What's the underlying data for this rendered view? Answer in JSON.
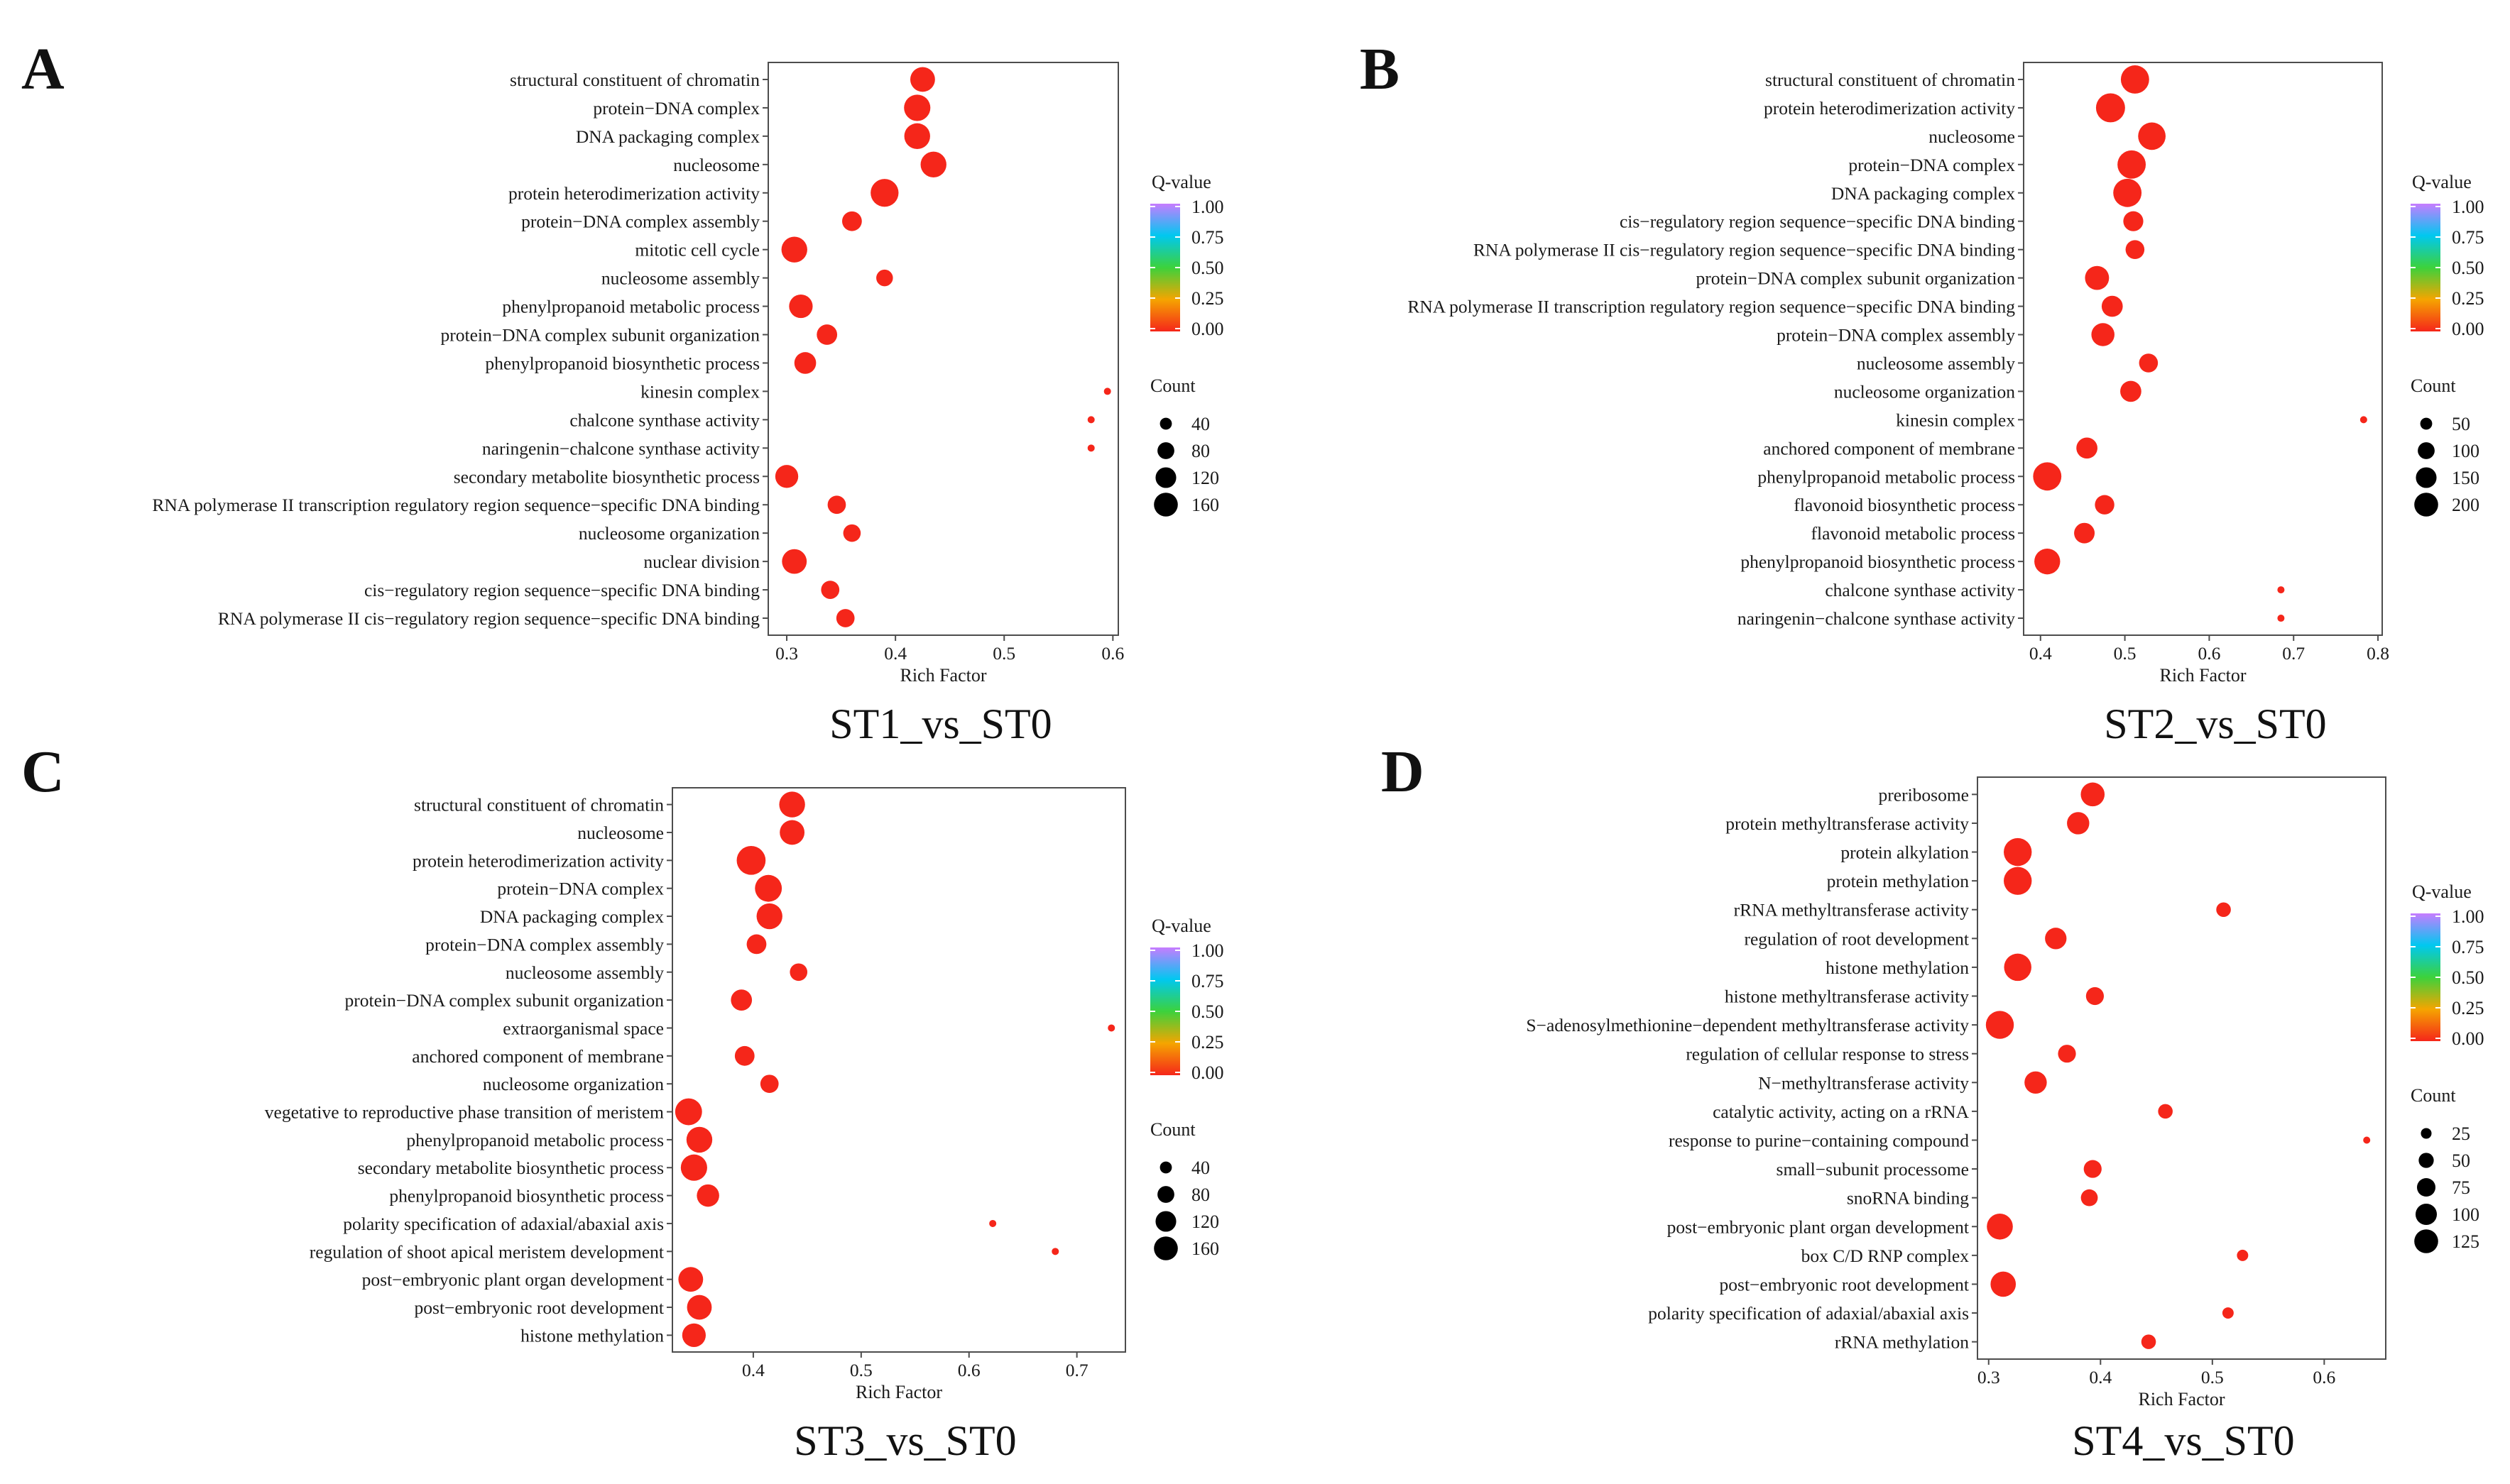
{
  "legend_labels": {
    "qvalue": "Q-value",
    "count": "Count"
  },
  "colors": {
    "dot": "#F5261A",
    "frame": "#4d4d4d"
  },
  "qvalue_ticks": [
    "1.00",
    "0.75",
    "0.50",
    "0.25",
    "0.00"
  ],
  "chart_data": [
    {
      "type": "scatter",
      "panel_letter": "A",
      "title": "ST1_vs_ST0",
      "xlabel": "Rich Factor",
      "xlim": [
        0.283,
        0.605
      ],
      "xticks": [
        0.3,
        0.4,
        0.5,
        0.6
      ],
      "xtick_labels": [
        "0.3",
        "0.4",
        "0.5",
        "0.6"
      ],
      "count_legend": {
        "values": [
          40,
          80,
          120,
          160
        ],
        "labels": [
          "40",
          "80",
          "120",
          "160"
        ]
      },
      "categories": [
        "structural constituent of chromatin",
        "protein−DNA complex",
        "DNA packaging complex",
        "nucleosome",
        "protein heterodimerization activity",
        "protein−DNA complex assembly",
        "mitotic cell cycle",
        "nucleosome assembly",
        "phenylpropanoid metabolic process",
        "protein−DNA complex subunit organization",
        "phenylpropanoid biosynthetic process",
        "kinesin complex",
        "chalcone synthase activity",
        "naringenin−chalcone synthase activity",
        "secondary metabolite biosynthetic process",
        "RNA polymerase II transcription regulatory region sequence−specific DNA binding",
        "nucleosome organization",
        "nuclear division",
        "cis−regulatory region sequence−specific DNA binding",
        "RNA polymerase II cis−regulatory region sequence−specific DNA binding"
      ],
      "rich_factor": [
        0.425,
        0.42,
        0.42,
        0.435,
        0.39,
        0.36,
        0.307,
        0.39,
        0.313,
        0.337,
        0.317,
        0.595,
        0.58,
        0.58,
        0.3,
        0.346,
        0.36,
        0.307,
        0.34,
        0.354
      ],
      "count": [
        110,
        125,
        120,
        120,
        140,
        70,
        120,
        50,
        100,
        75,
        85,
        8,
        8,
        8,
        95,
        60,
        55,
        110,
        60,
        60
      ],
      "qvalue": [
        0,
        0,
        0,
        0,
        0,
        0,
        0,
        0,
        0,
        0,
        0,
        0.02,
        0.02,
        0.02,
        0,
        0,
        0,
        0,
        0,
        0
      ]
    },
    {
      "type": "scatter",
      "panel_letter": "B",
      "title": "ST2_vs_ST0",
      "xlabel": "Rich Factor",
      "xlim": [
        0.38,
        0.805
      ],
      "xticks": [
        0.4,
        0.5,
        0.6,
        0.7,
        0.8
      ],
      "xtick_labels": [
        "0.4",
        "0.5",
        "0.6",
        "0.7",
        "0.8"
      ],
      "count_legend": {
        "values": [
          50,
          100,
          150,
          200
        ],
        "labels": [
          "50",
          "100",
          "150",
          "200"
        ]
      },
      "categories": [
        "structural constituent of chromatin",
        "protein heterodimerization activity",
        "nucleosome",
        "protein−DNA complex",
        "DNA packaging complex",
        "cis−regulatory region sequence−specific DNA binding",
        "RNA polymerase II cis−regulatory region sequence−specific DNA binding",
        "protein−DNA complex subunit organization",
        "RNA polymerase II transcription regulatory region sequence−specific DNA binding",
        "protein−DNA complex assembly",
        "nucleosome assembly",
        "nucleosome organization",
        "kinesin complex",
        "anchored component of membrane",
        "phenylpropanoid metabolic process",
        "flavonoid biosynthetic process",
        "flavonoid metabolic process",
        "phenylpropanoid biosynthetic process",
        "chalcone synthase activity",
        "naringenin−chalcone synthase activity"
      ],
      "rich_factor": [
        0.512,
        0.483,
        0.532,
        0.508,
        0.503,
        0.51,
        0.512,
        0.467,
        0.485,
        0.474,
        0.528,
        0.507,
        0.783,
        0.455,
        0.408,
        0.476,
        0.452,
        0.408,
        0.685,
        0.685
      ],
      "count": [
        180,
        190,
        170,
        180,
        180,
        90,
        80,
        130,
        100,
        120,
        80,
        100,
        8,
        100,
        180,
        85,
        95,
        150,
        8,
        8
      ],
      "qvalue": [
        0,
        0,
        0,
        0,
        0,
        0,
        0,
        0,
        0,
        0,
        0,
        0,
        0.02,
        0,
        0,
        0,
        0,
        0,
        0.02,
        0.02
      ]
    },
    {
      "type": "scatter",
      "panel_letter": "C",
      "title": "ST3_vs_ST0",
      "xlabel": "Rich Factor",
      "xlim": [
        0.325,
        0.745
      ],
      "xticks": [
        0.4,
        0.5,
        0.6,
        0.7
      ],
      "xtick_labels": [
        "0.4",
        "0.5",
        "0.6",
        "0.7"
      ],
      "count_legend": {
        "values": [
          40,
          80,
          120,
          160
        ],
        "labels": [
          "40",
          "80",
          "120",
          "160"
        ]
      },
      "categories": [
        "structural constituent of chromatin",
        "nucleosome",
        "protein heterodimerization activity",
        "protein−DNA complex",
        "DNA packaging complex",
        "protein−DNA complex assembly",
        "nucleosome assembly",
        "protein−DNA complex subunit organization",
        "extraorganismal space",
        "anchored component of membrane",
        "nucleosome organization",
        "vegetative to reproductive phase transition of meristem",
        "phenylpropanoid metabolic process",
        "secondary metabolite biosynthetic process",
        "phenylpropanoid biosynthetic process",
        "polarity specification of adaxial/abaxial axis",
        "regulation of shoot apical meristem development",
        "post−embryonic plant organ development",
        "post−embryonic root development",
        "histone methylation"
      ],
      "rich_factor": [
        0.436,
        0.436,
        0.398,
        0.414,
        0.415,
        0.403,
        0.442,
        0.389,
        0.732,
        0.392,
        0.415,
        0.34,
        0.35,
        0.345,
        0.358,
        0.622,
        0.68,
        0.342,
        0.35,
        0.345
      ],
      "count": [
        120,
        110,
        150,
        130,
        120,
        70,
        55,
        80,
        8,
        70,
        60,
        130,
        120,
        125,
        90,
        8,
        8,
        110,
        110,
        100
      ],
      "qvalue": [
        0,
        0,
        0,
        0,
        0,
        0,
        0,
        0,
        0.02,
        0,
        0,
        0,
        0,
        0,
        0,
        0.02,
        0.02,
        0,
        0,
        0
      ]
    },
    {
      "type": "scatter",
      "panel_letter": "D",
      "title": "ST4_vs_ST0",
      "xlabel": "Rich Factor",
      "xlim": [
        0.29,
        0.655
      ],
      "xticks": [
        0.3,
        0.4,
        0.5,
        0.6
      ],
      "xtick_labels": [
        "0.3",
        "0.4",
        "0.5",
        "0.6"
      ],
      "count_legend": {
        "values": [
          25,
          50,
          75,
          100,
          125
        ],
        "labels": [
          "25",
          "50",
          "75",
          "100",
          "125"
        ]
      },
      "categories": [
        "preribosome",
        "protein methyltransferase activity",
        "protein alkylation",
        "protein methylation",
        "rRNA methyltransferase activity",
        "regulation of root development",
        "histone methylation",
        "histone methyltransferase activity",
        "S−adenosylmethionine−dependent methyltransferase activity",
        "regulation of cellular response to stress",
        "N−methyltransferase activity",
        "catalytic activity, acting on a rRNA",
        "response to purine−containing compound",
        "small−subunit processome",
        "snoRNA binding",
        "post−embryonic plant organ development",
        "box C/D RNP complex",
        "post−embryonic root development",
        "polarity specification of adaxial/abaxial axis",
        "rRNA methylation"
      ],
      "rich_factor": [
        0.393,
        0.38,
        0.326,
        0.326,
        0.51,
        0.36,
        0.326,
        0.395,
        0.31,
        0.37,
        0.342,
        0.458,
        0.638,
        0.393,
        0.39,
        0.31,
        0.527,
        0.313,
        0.514,
        0.443
      ],
      "count": [
        80,
        70,
        110,
        110,
        30,
        65,
        105,
        45,
        110,
        45,
        70,
        30,
        6,
        45,
        40,
        95,
        18,
        90,
        18,
        30
      ],
      "qvalue": [
        0,
        0,
        0,
        0,
        0,
        0,
        0,
        0,
        0,
        0,
        0,
        0,
        0.02,
        0,
        0,
        0,
        0,
        0,
        0,
        0
      ]
    }
  ]
}
